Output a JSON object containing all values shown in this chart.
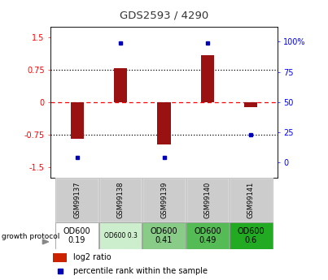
{
  "title": "GDS2593 / 4290",
  "samples": [
    "GSM99137",
    "GSM99138",
    "GSM99139",
    "GSM99140",
    "GSM99141"
  ],
  "log2_ratio": [
    -0.85,
    0.78,
    -0.98,
    1.08,
    -0.12
  ],
  "percentile_rank": [
    4,
    99,
    4,
    99,
    23
  ],
  "growth_protocol": [
    "OD600\n0.19",
    "OD600 0.3",
    "OD600\n0.41",
    "OD600\n0.49",
    "OD600\n0.6"
  ],
  "growth_protocol_bg": [
    "#ffffff",
    "#cceecc",
    "#88cc88",
    "#55bb55",
    "#22aa22"
  ],
  "growth_protocol_fontsize": [
    7,
    5.5,
    7,
    7,
    7
  ],
  "bar_color": "#991111",
  "dot_color": "#0000bb",
  "legend_red": "#cc2200",
  "legend_blue": "#0000bb",
  "ylim_left": [
    -1.75,
    1.75
  ],
  "ylim_right": [
    -12.5,
    112.5
  ],
  "yticks_left": [
    -1.5,
    -0.75,
    0,
    0.75,
    1.5
  ],
  "yticks_right": [
    0,
    25,
    50,
    75,
    100
  ],
  "hlines_dotted": [
    -0.75,
    0.75
  ],
  "hline_dashed": 0,
  "x_positions": [
    0,
    1,
    2,
    3,
    4
  ],
  "bar_width": 0.3,
  "sample_box_color": "#cccccc",
  "plot_bg": "#ffffff"
}
